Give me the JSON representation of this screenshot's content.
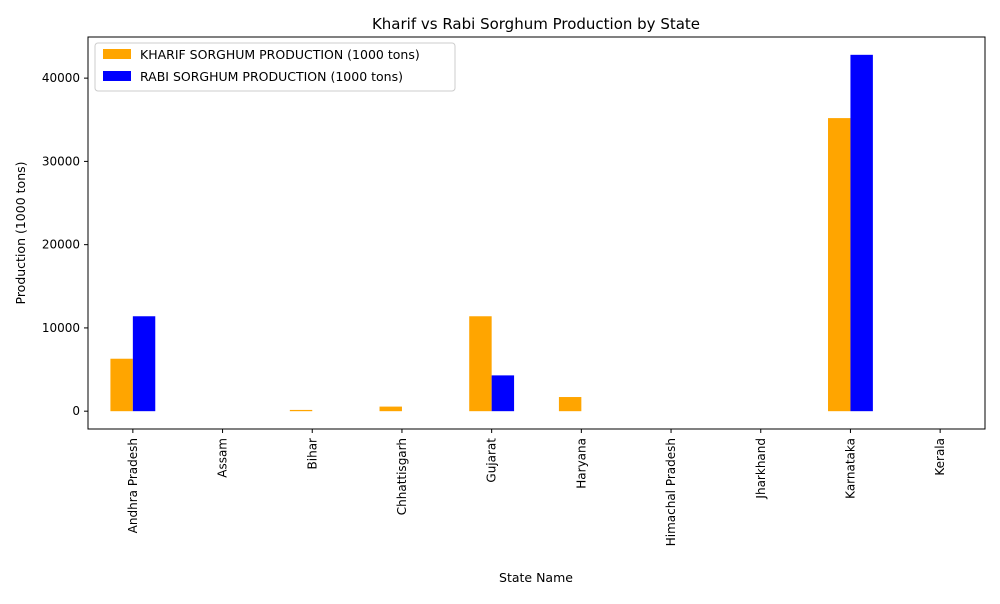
{
  "chart_data": {
    "type": "bar",
    "title": "Kharif vs Rabi Sorghum Production by State",
    "xlabel": "State Name",
    "ylabel": "Production (1000 tons)",
    "categories": [
      "Andhra Pradesh",
      "Assam",
      "Bihar",
      "Chhattisgarh",
      "Gujarat",
      "Haryana",
      "Himachal Pradesh",
      "Jharkhand",
      "Karnataka",
      "Kerala"
    ],
    "series": [
      {
        "name": "KHARIF SORGHUM PRODUCTION (1000 tons)",
        "color": "#ffa500",
        "values": [
          6300,
          0,
          150,
          550,
          11400,
          1700,
          0,
          0,
          35200,
          0
        ]
      },
      {
        "name": "RABI SORGHUM PRODUCTION (1000 tons)",
        "color": "#0000ff",
        "values": [
          11400,
          0,
          0,
          0,
          4300,
          0,
          0,
          0,
          42800,
          0
        ]
      }
    ],
    "ylim": [
      -2140,
      44940
    ],
    "yticks": [
      0,
      10000,
      20000,
      30000,
      40000
    ],
    "legend": "top-left",
    "grid": false
  }
}
